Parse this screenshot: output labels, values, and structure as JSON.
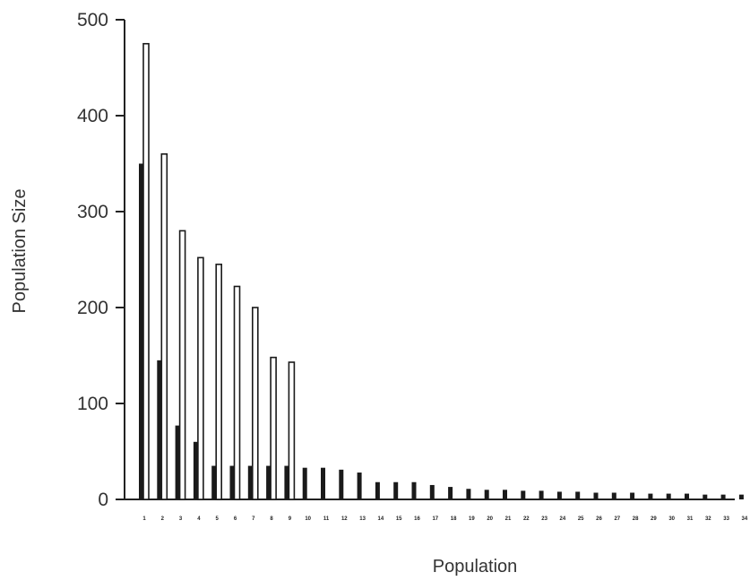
{
  "chart_data": {
    "type": "bar",
    "title": "",
    "xlabel": "Population",
    "ylabel": "Population Size",
    "ylim": [
      0,
      500
    ],
    "yticks": [
      0,
      100,
      200,
      300,
      400,
      500
    ],
    "grid": false,
    "categories": [
      "1",
      "2",
      "3",
      "4",
      "5",
      "6",
      "7",
      "8",
      "9",
      "10",
      "11",
      "12",
      "13",
      "14",
      "15",
      "16",
      "17",
      "18",
      "19",
      "20",
      "21",
      "22",
      "23",
      "24",
      "25",
      "26",
      "27",
      "28",
      "29",
      "30",
      "31",
      "32",
      "33",
      "34"
    ],
    "series": [
      {
        "color": "#1a1a1a",
        "fill": "solid",
        "values": [
          350,
          145,
          77,
          60,
          35,
          35,
          35,
          35,
          35,
          33,
          33,
          31,
          28,
          18,
          18,
          18,
          15,
          13,
          11,
          10,
          10,
          9,
          9,
          8,
          8,
          7,
          7,
          7,
          6,
          6,
          6,
          5,
          5,
          5
        ]
      },
      {
        "color": "#1a1a1a",
        "fill": "outline",
        "values": [
          475,
          360,
          280,
          252,
          245,
          222,
          200,
          148,
          143,
          null,
          null,
          null,
          null,
          null,
          null,
          null,
          null,
          null,
          null,
          null,
          null,
          null,
          null,
          null,
          null,
          null,
          null,
          null,
          null,
          null,
          null,
          null,
          null,
          null
        ]
      }
    ]
  }
}
